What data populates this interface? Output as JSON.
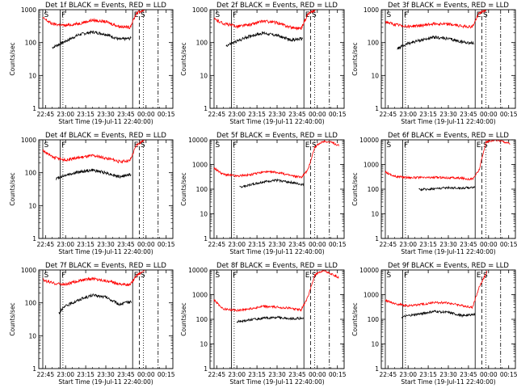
{
  "chart_data": {
    "type": "line",
    "layout": "3x3 grid",
    "scale": "log",
    "ylabel": "Counts/sec",
    "xlabel": "Start Time (19-Jul-11 22:40:00)",
    "x_tick_labels": [
      "22:45",
      "23:00",
      "23:15",
      "23:30",
      "23:45",
      "00:00",
      "00:15"
    ],
    "y_tick_labels": [
      "1",
      "10",
      "100",
      "1000",
      "10000"
    ],
    "colors": {
      "events": "#000000",
      "lld": "#ff0000",
      "markers": "#000000"
    },
    "markers": [
      {
        "label": "S",
        "time": "22:43",
        "style": "solid"
      },
      {
        "label": "F",
        "time": "22:56",
        "style": "solid"
      },
      {
        "label": "",
        "time": "22:58",
        "style": "dotted"
      },
      {
        "label": "E",
        "time": "23:50",
        "style": "solid"
      },
      {
        "label": "S",
        "time": "23:55",
        "style": "dashed"
      },
      {
        "label": "",
        "time": "23:58",
        "style": "dotted"
      },
      {
        "label": "",
        "time": "00:09",
        "style": "dash-dot"
      }
    ],
    "panels": [
      {
        "title": "Det 1f BLACK = Events, RED = LLD",
        "ymax": 1000,
        "series": [
          {
            "name": "Events",
            "start": "22:50",
            "end": "23:49",
            "x": [
              "22:50",
              "23:00",
              "23:10",
              "23:20",
              "23:30",
              "23:40",
              "23:49"
            ],
            "y": [
              70,
              110,
              175,
              210,
              180,
              125,
              135
            ]
          },
          {
            "name": "LLD",
            "start": "22:43",
            "end": "23:59",
            "x": [
              "22:43",
              "22:50",
              "23:00",
              "23:10",
              "23:20",
              "23:30",
              "23:40",
              "23:48",
              "23:53",
              "23:59"
            ],
            "y": [
              560,
              370,
              330,
              380,
              480,
              430,
              310,
              290,
              800,
              1000
            ]
          }
        ]
      },
      {
        "title": "Det 2f BLACK = Events, RED = LLD",
        "ymax": 1000,
        "series": [
          {
            "name": "Events",
            "start": "22:52",
            "end": "23:49",
            "x": [
              "22:52",
              "23:00",
              "23:10",
              "23:20",
              "23:30",
              "23:40",
              "23:49"
            ],
            "y": [
              80,
              110,
              160,
              195,
              165,
              120,
              130
            ]
          },
          {
            "name": "LLD",
            "start": "22:43",
            "end": "23:59",
            "x": [
              "22:43",
              "22:50",
              "23:00",
              "23:10",
              "23:20",
              "23:30",
              "23:40",
              "23:48",
              "23:53",
              "23:59"
            ],
            "y": [
              520,
              380,
              310,
              350,
              450,
              400,
              290,
              270,
              750,
              1000
            ]
          }
        ]
      },
      {
        "title": "Det 3f BLACK = Events, RED = LLD",
        "ymax": 1000,
        "series": [
          {
            "name": "Events",
            "start": "22:52",
            "end": "23:49",
            "x": [
              "22:52",
              "23:00",
              "23:10",
              "23:20",
              "23:30",
              "23:40",
              "23:49"
            ],
            "y": [
              65,
              95,
              120,
              145,
              130,
              105,
              95
            ]
          },
          {
            "name": "LLD",
            "start": "22:43",
            "end": "23:59",
            "x": [
              "22:43",
              "22:50",
              "23:00",
              "23:10",
              "23:20",
              "23:30",
              "23:40",
              "23:48",
              "23:53",
              "23:59"
            ],
            "y": [
              430,
              350,
              310,
              330,
              380,
              360,
              320,
              300,
              800,
              1000
            ]
          }
        ]
      },
      {
        "title": "Det 4f BLACK = Events, RED = LLD",
        "ymax": 1000,
        "series": [
          {
            "name": "Events",
            "start": "22:53",
            "end": "23:49",
            "x": [
              "22:53",
              "23:00",
              "23:10",
              "23:20",
              "23:30",
              "23:40",
              "23:49"
            ],
            "y": [
              65,
              85,
              105,
              120,
              100,
              75,
              90
            ]
          },
          {
            "name": "LLD",
            "start": "22:43",
            "end": "23:59",
            "x": [
              "22:43",
              "22:50",
              "23:00",
              "23:10",
              "23:20",
              "23:30",
              "23:40",
              "23:48",
              "23:53",
              "23:59"
            ],
            "y": [
              480,
              300,
              240,
              290,
              330,
              280,
              220,
              230,
              700,
              1000
            ]
          }
        ]
      },
      {
        "title": "Det 5f BLACK = Events, RED = LLD",
        "ymax": 10000,
        "series": [
          {
            "name": "Events",
            "start": "23:02",
            "end": "23:50",
            "x": [
              "23:02",
              "23:10",
              "23:20",
              "23:30",
              "23:40",
              "23:50"
            ],
            "y": [
              120,
              150,
              200,
              230,
              190,
              150
            ]
          },
          {
            "name": "LLD",
            "start": "22:43",
            "end": "00:16",
            "x": [
              "22:43",
              "22:50",
              "23:00",
              "23:10",
              "23:20",
              "23:30",
              "23:40",
              "23:48",
              "23:53",
              "23:58",
              "00:05",
              "00:10",
              "00:16"
            ],
            "y": [
              700,
              400,
              340,
              380,
              500,
              480,
              360,
              300,
              600,
              5000,
              9000,
              8000,
              6000
            ]
          }
        ]
      },
      {
        "title": "Det 6f BLACK = Events, RED = LLD",
        "ymax": 10000,
        "series": [
          {
            "name": "Events",
            "start": "23:08",
            "end": "23:50",
            "x": [
              "23:08",
              "23:20",
              "23:30",
              "23:40",
              "23:50"
            ],
            "y": [
              95,
              105,
              115,
              110,
              120
            ]
          },
          {
            "name": "LLD",
            "start": "22:43",
            "end": "00:16",
            "x": [
              "22:43",
              "22:50",
              "23:00",
              "23:10",
              "23:20",
              "23:30",
              "23:40",
              "23:48",
              "23:53",
              "23:58",
              "00:05",
              "00:10",
              "00:16"
            ],
            "y": [
              500,
              330,
              300,
              290,
              300,
              290,
              280,
              250,
              600,
              8000,
              10000,
              9000,
              7000
            ]
          }
        ]
      },
      {
        "title": "Det 7f BLACK = Events, RED = LLD",
        "ymax": 1000,
        "series": [
          {
            "name": "Events",
            "start": "22:55",
            "end": "23:49",
            "x": [
              "22:55",
              "23:00",
              "23:10",
              "23:20",
              "23:30",
              "23:40",
              "23:49"
            ],
            "y": [
              50,
              80,
              125,
              170,
              150,
              90,
              110
            ]
          },
          {
            "name": "LLD",
            "start": "22:43",
            "end": "23:59",
            "x": [
              "22:43",
              "22:50",
              "23:00",
              "23:10",
              "23:20",
              "23:30",
              "23:40",
              "23:48",
              "23:53",
              "23:59"
            ],
            "y": [
              500,
              400,
              360,
              470,
              550,
              470,
              380,
              350,
              700,
              1000
            ]
          }
        ]
      },
      {
        "title": "Det 8f BLACK = Events, RED = LLD",
        "ymax": 10000,
        "series": [
          {
            "name": "Events",
            "start": "23:00",
            "end": "23:50",
            "x": [
              "23:00",
              "23:10",
              "23:20",
              "23:30",
              "23:40",
              "23:50"
            ],
            "y": [
              80,
              95,
              110,
              120,
              105,
              110
            ]
          },
          {
            "name": "LLD",
            "start": "22:43",
            "end": "00:16",
            "x": [
              "22:43",
              "22:50",
              "23:00",
              "23:10",
              "23:20",
              "23:30",
              "23:40",
              "23:48",
              "23:53",
              "23:58",
              "00:05",
              "00:10",
              "00:16"
            ],
            "y": [
              600,
              260,
              230,
              270,
              330,
              310,
              280,
              240,
              800,
              6000,
              10000,
              7000,
              5000
            ]
          }
        ]
      },
      {
        "title": "Det 9f BLACK = Events, RED = LLD",
        "ymax": 10000,
        "series": [
          {
            "name": "Events",
            "start": "22:55",
            "end": "23:50",
            "x": [
              "22:55",
              "23:00",
              "23:10",
              "23:20",
              "23:30",
              "23:40",
              "23:50"
            ],
            "y": [
              120,
              140,
              170,
              210,
              190,
              140,
              160
            ]
          },
          {
            "name": "LLD",
            "start": "22:43",
            "end": "23:59",
            "x": [
              "22:43",
              "22:50",
              "23:00",
              "23:10",
              "23:20",
              "23:30",
              "23:40",
              "23:48",
              "23:53",
              "23:59"
            ],
            "y": [
              600,
              430,
              350,
              400,
              480,
              460,
              360,
              300,
              2000,
              9000
            ]
          }
        ]
      }
    ]
  }
}
